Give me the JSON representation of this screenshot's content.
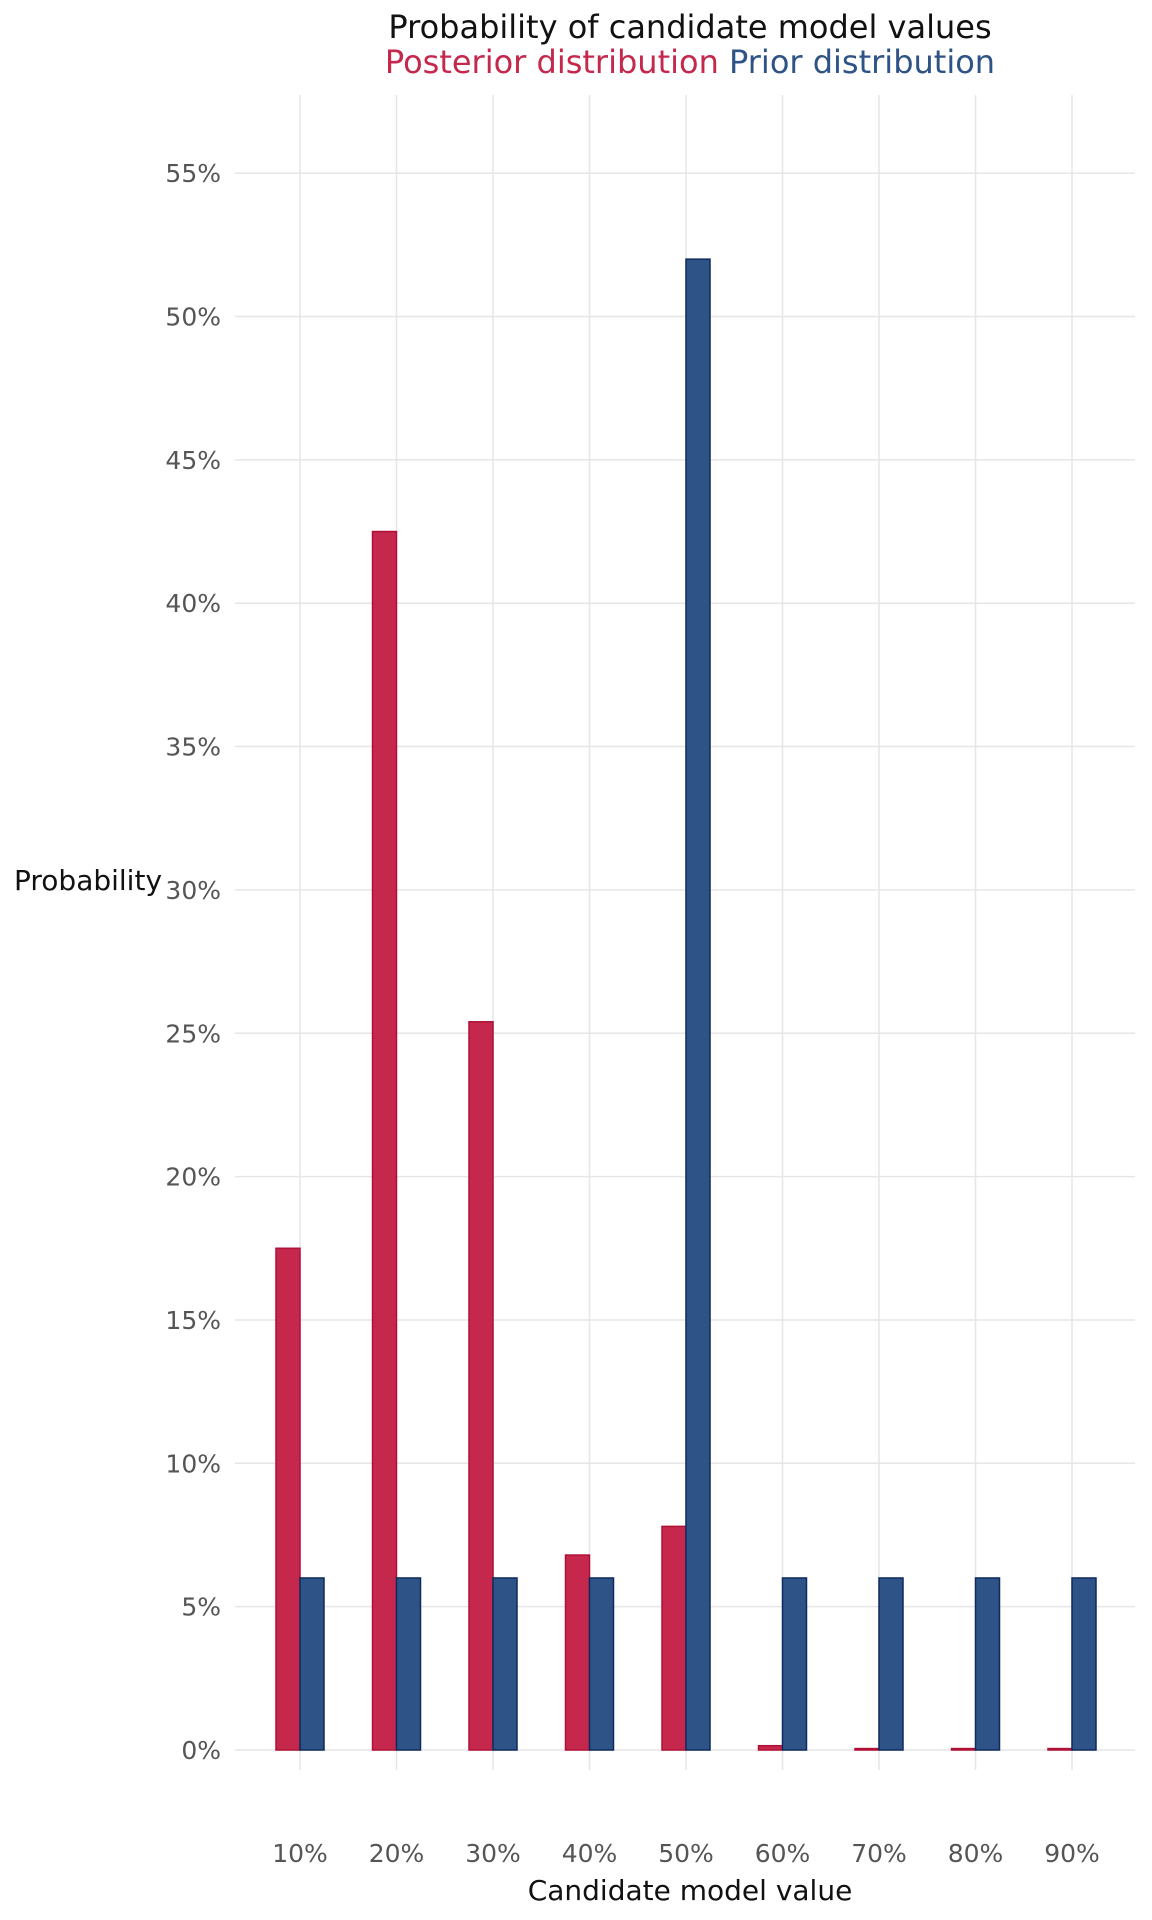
{
  "chart_data": {
    "type": "bar",
    "title": "Probability of candidate model values",
    "xlabel": "Candidate model value",
    "ylabel": "Probability",
    "categories": [
      "10%",
      "20%",
      "30%",
      "40%",
      "50%",
      "60%",
      "70%",
      "80%",
      "90%"
    ],
    "series": [
      {
        "name": "Posterior distribution",
        "color": "#C5284C",
        "border_color": "#B01035",
        "values": [
          17.5,
          42.5,
          25.4,
          6.8,
          7.8,
          0.15,
          0.05,
          0.05,
          0.05
        ]
      },
      {
        "name": "Prior distribution",
        "color": "#2E5386",
        "border_color": "#0E2A5E",
        "values": [
          6.0,
          6.0,
          6.0,
          6.0,
          52.0,
          6.0,
          6.0,
          6.0,
          6.0
        ]
      }
    ],
    "ylim": [
      0,
      57
    ],
    "yticks": [
      0,
      5,
      10,
      15,
      20,
      25,
      30,
      35,
      40,
      45,
      50,
      55
    ],
    "ytick_labels": [
      "0%",
      "5%",
      "10%",
      "15%",
      "20%",
      "25%",
      "30%",
      "35%",
      "40%",
      "45%",
      "50%",
      "55%"
    ],
    "grid": true,
    "legend_position": "top, in subtitle"
  }
}
